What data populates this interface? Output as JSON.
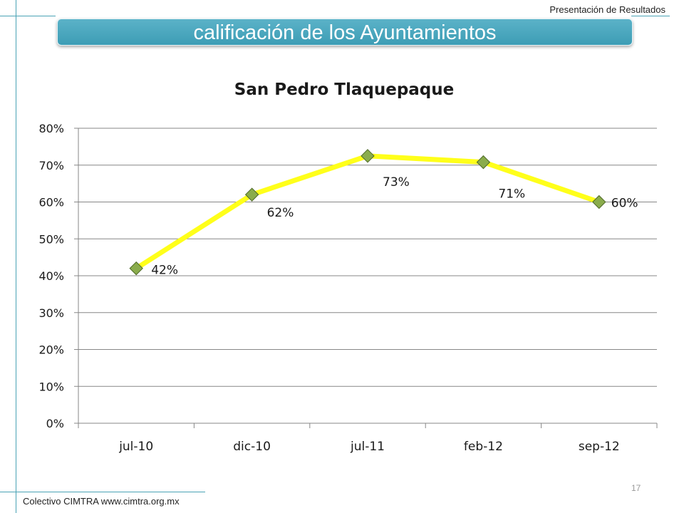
{
  "header": {
    "presentation_label": "Presentación de Resultados",
    "banner_title": "calificación de los  Ayuntamientos"
  },
  "footer": {
    "source": "Colectivo CIMTRA www.cimtra.org.mx",
    "page_number": "17"
  },
  "colors": {
    "banner": "#45a7bd",
    "line": "#ffff1a",
    "marker": "#8aac4c",
    "marker_border": "#4f6a28",
    "grid": "#878787"
  },
  "chart_data": {
    "type": "line",
    "title": "San Pedro Tlaquepaque",
    "categories": [
      "jul-10",
      "dic-10",
      "jul-11",
      "feb-12",
      "sep-12"
    ],
    "values": [
      0.42,
      0.62,
      0.725,
      0.708,
      0.6
    ],
    "data_labels": [
      "42%",
      "62%",
      "73%",
      "71%",
      "60%"
    ],
    "ylim": [
      0,
      0.8
    ],
    "yticks": [
      0,
      0.1,
      0.2,
      0.3,
      0.4,
      0.5,
      0.6,
      0.7,
      0.8
    ],
    "ytick_labels": [
      "0%",
      "10%",
      "20%",
      "30%",
      "40%",
      "50%",
      "60%",
      "70%",
      "80%"
    ],
    "grid": true,
    "legend": "none",
    "marker": "diamond"
  }
}
